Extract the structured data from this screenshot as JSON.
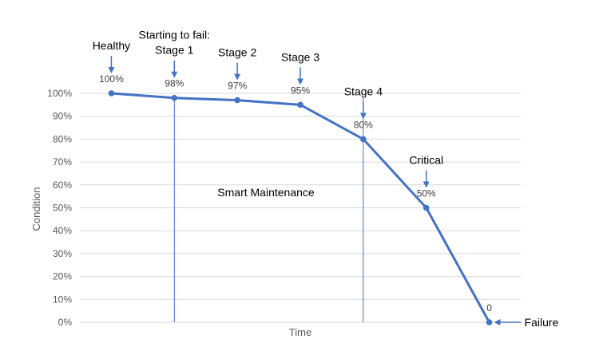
{
  "chart_data": {
    "type": "line",
    "title": "",
    "xlabel": "Time",
    "ylabel": "Condition",
    "ylim": [
      0,
      100
    ],
    "yticks": [
      "0%",
      "10%",
      "20%",
      "30%",
      "40%",
      "50%",
      "60%",
      "70%",
      "80%",
      "90%",
      "100%"
    ],
    "grid": true,
    "colors": {
      "line": "#4472C4",
      "arrow": "#4472C4",
      "vline": "#4472C4",
      "grid": "#d9d9d9"
    },
    "series": [
      {
        "points": [
          {
            "t": 1,
            "y": 100,
            "label": "100%"
          },
          {
            "t": 2,
            "y": 98,
            "label": "98%"
          },
          {
            "t": 3,
            "y": 97,
            "label": "97%"
          },
          {
            "t": 4,
            "y": 95,
            "label": "95%"
          },
          {
            "t": 5,
            "y": 80,
            "label": "80%"
          },
          {
            "t": 6,
            "y": 50,
            "label": "50%"
          },
          {
            "t": 7,
            "y": 0,
            "label": "0"
          }
        ]
      }
    ],
    "vertical_markers": [
      2,
      5
    ],
    "region_label": "Smart Maintenance",
    "annotations": [
      {
        "t": 1,
        "lines": [
          "Healthy"
        ]
      },
      {
        "t": 2,
        "lines": [
          "Starting to fail:",
          "Stage 1"
        ]
      },
      {
        "t": 3,
        "lines": [
          "Stage 2"
        ]
      },
      {
        "t": 4,
        "lines": [
          "Stage 3"
        ]
      },
      {
        "t": 5,
        "lines": [
          "Stage 4"
        ]
      },
      {
        "t": 6,
        "lines": [
          "Critical"
        ]
      },
      {
        "t": 7,
        "lines": [
          "Failure"
        ],
        "side": "right"
      }
    ]
  }
}
